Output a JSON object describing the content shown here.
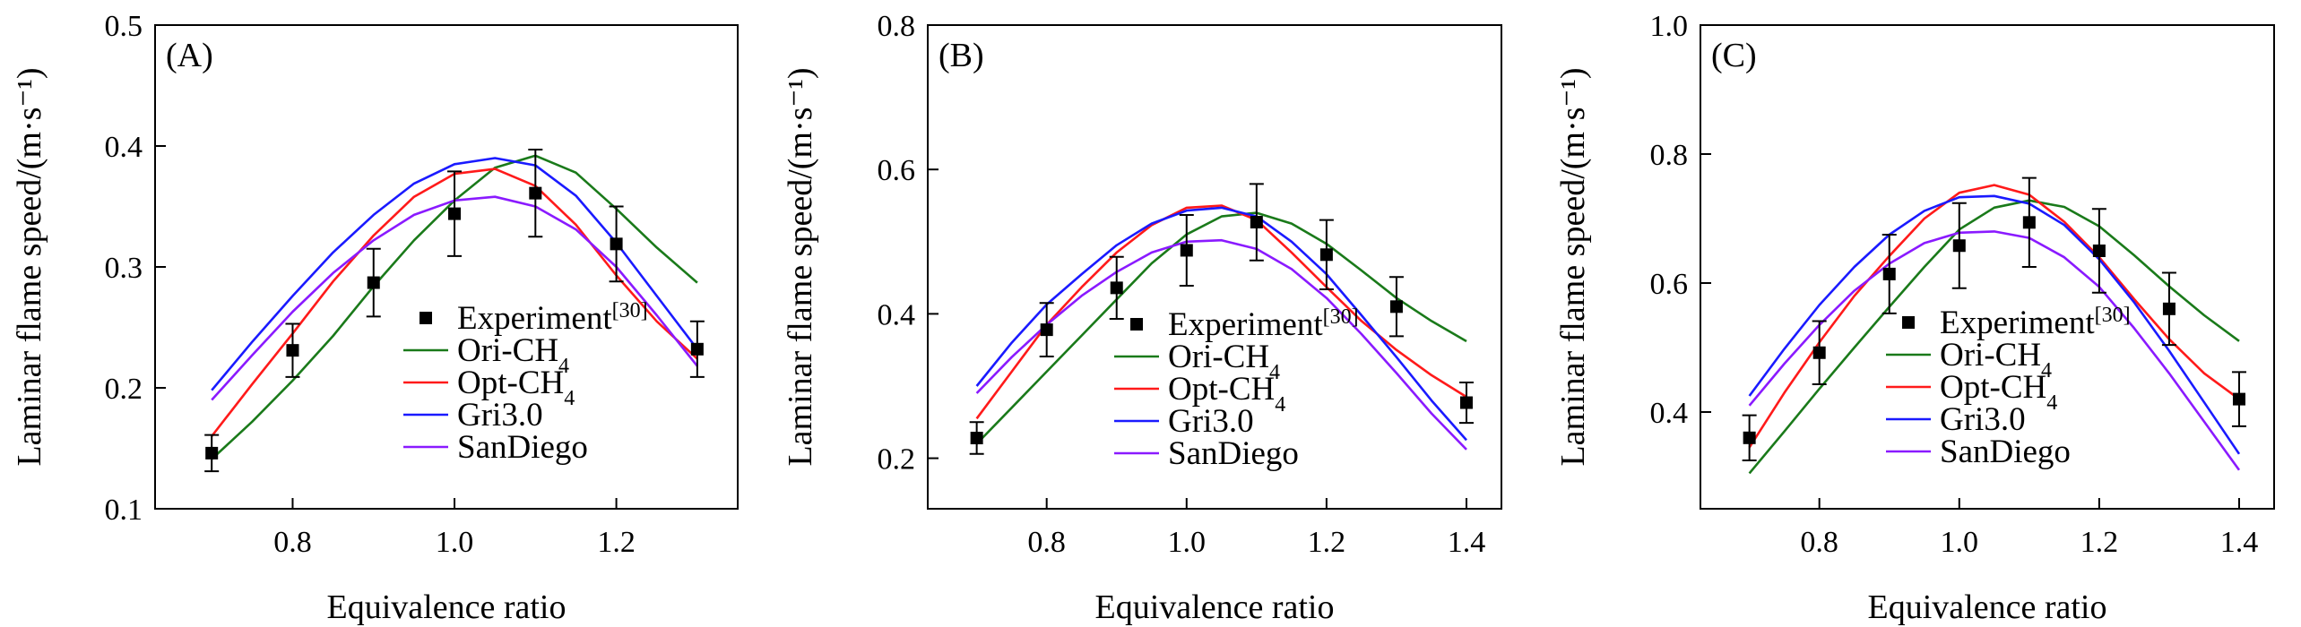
{
  "colors": {
    "experiment": "#000000",
    "Ori-CH4": "#1a7a1a",
    "Opt-CH4": "#ff1a1a",
    "Gri3.0": "#1a1aff",
    "SanDiego": "#8a1aff"
  },
  "legend": [
    {
      "key": "experiment",
      "base": "Experiment",
      "sup": "[30]",
      "sub": ""
    },
    {
      "key": "Ori-CH4",
      "base": "Ori-CH",
      "sup": "",
      "sub": "4"
    },
    {
      "key": "Opt-CH4",
      "base": "Opt-CH",
      "sup": "",
      "sub": "4"
    },
    {
      "key": "Gri3.0",
      "base": "Gri3.0",
      "sup": "",
      "sub": ""
    },
    {
      "key": "SanDiego",
      "base": "SanDiego",
      "sup": "",
      "sub": ""
    }
  ],
  "chart_data": [
    {
      "type": "line",
      "panel": "(A)",
      "xlabel": "Equivalence ratio",
      "ylabel": "Laminar flame speed/(m·s⁻¹)",
      "xlim": [
        0.63,
        1.35
      ],
      "ylim": [
        0.1,
        0.5
      ],
      "xticks": [
        0.8,
        1.0,
        1.2
      ],
      "xtick_labels": [
        "0.8",
        "1.0",
        "1.2"
      ],
      "yticks": [
        0.1,
        0.2,
        0.3,
        0.4,
        0.5
      ],
      "ytick_labels": [
        "0.1",
        "0.2",
        "0.3",
        "0.4",
        "0.5"
      ],
      "x": [
        0.7,
        0.75,
        0.8,
        0.85,
        0.9,
        0.95,
        1.0,
        1.05,
        1.1,
        1.15,
        1.2,
        1.25,
        1.3
      ],
      "series": [
        {
          "name": "Ori-CH4",
          "values": [
            0.141,
            0.172,
            0.206,
            0.243,
            0.284,
            0.322,
            0.355,
            0.382,
            0.392,
            0.378,
            0.348,
            0.316,
            0.287
          ]
        },
        {
          "name": "Opt-CH4",
          "values": [
            0.16,
            0.203,
            0.245,
            0.288,
            0.326,
            0.358,
            0.377,
            0.381,
            0.367,
            0.335,
            0.293,
            0.255,
            0.224
          ]
        },
        {
          "name": "Gri3.0",
          "values": [
            0.198,
            0.238,
            0.276,
            0.312,
            0.343,
            0.369,
            0.385,
            0.39,
            0.384,
            0.359,
            0.32,
            0.276,
            0.232
          ]
        },
        {
          "name": "SanDiego",
          "values": [
            0.19,
            0.227,
            0.263,
            0.295,
            0.322,
            0.343,
            0.355,
            0.358,
            0.35,
            0.331,
            0.3,
            0.26,
            0.218
          ]
        }
      ],
      "experiment": {
        "x": [
          0.7,
          0.8,
          0.9,
          1.0,
          1.1,
          1.2,
          1.3
        ],
        "y": [
          0.146,
          0.231,
          0.287,
          0.344,
          0.361,
          0.319,
          0.232
        ],
        "err": [
          0.015,
          0.022,
          0.028,
          0.035,
          0.036,
          0.031,
          0.023
        ]
      }
    },
    {
      "type": "line",
      "panel": "(B)",
      "xlabel": "Equivalence ratio",
      "ylabel": "Laminar flame speed/(m·s⁻¹)",
      "xlim": [
        0.63,
        1.45
      ],
      "ylim": [
        0.13,
        0.8
      ],
      "xticks": [
        0.8,
        1.0,
        1.2,
        1.4
      ],
      "xtick_labels": [
        "0.8",
        "1.0",
        "1.2",
        "1.4"
      ],
      "yticks": [
        0.2,
        0.4,
        0.6,
        0.8
      ],
      "ytick_labels": [
        "0.2",
        "0.4",
        "0.6",
        "0.8"
      ],
      "x": [
        0.7,
        0.75,
        0.8,
        0.85,
        0.9,
        0.95,
        1.0,
        1.05,
        1.1,
        1.15,
        1.2,
        1.25,
        1.3,
        1.35,
        1.4
      ],
      "series": [
        {
          "name": "Ori-CH4",
          "values": [
            0.22,
            0.27,
            0.32,
            0.37,
            0.42,
            0.47,
            0.51,
            0.535,
            0.54,
            0.525,
            0.497,
            0.46,
            0.422,
            0.39,
            0.362
          ]
        },
        {
          "name": "Opt-CH4",
          "values": [
            0.255,
            0.32,
            0.385,
            0.437,
            0.485,
            0.523,
            0.547,
            0.55,
            0.53,
            0.485,
            0.437,
            0.39,
            0.35,
            0.315,
            0.285
          ]
        },
        {
          "name": "Gri3.0",
          "values": [
            0.3,
            0.36,
            0.413,
            0.455,
            0.495,
            0.525,
            0.543,
            0.547,
            0.535,
            0.5,
            0.455,
            0.398,
            0.34,
            0.28,
            0.225
          ]
        },
        {
          "name": "SanDiego",
          "values": [
            0.29,
            0.34,
            0.385,
            0.425,
            0.458,
            0.485,
            0.5,
            0.502,
            0.49,
            0.462,
            0.422,
            0.372,
            0.318,
            0.262,
            0.212
          ]
        }
      ],
      "experiment": {
        "x": [
          0.7,
          0.8,
          0.9,
          1.0,
          1.1,
          1.2,
          1.3,
          1.4
        ],
        "y": [
          0.228,
          0.378,
          0.436,
          0.488,
          0.527,
          0.482,
          0.41,
          0.277
        ],
        "err": [
          0.022,
          0.037,
          0.043,
          0.049,
          0.053,
          0.048,
          0.041,
          0.028
        ]
      }
    },
    {
      "type": "line",
      "panel": "(C)",
      "xlabel": "Equivalence ratio",
      "ylabel": "Laminar flame speed/(m·s⁻¹)",
      "xlim": [
        0.63,
        1.45
      ],
      "ylim": [
        0.25,
        1.0
      ],
      "xticks": [
        0.8,
        1.0,
        1.2,
        1.4
      ],
      "xtick_labels": [
        "0.8",
        "1.0",
        "1.2",
        "1.4"
      ],
      "yticks": [
        0.4,
        0.6,
        0.8,
        1.0
      ],
      "ytick_labels": [
        "0.4",
        "0.6",
        "0.8",
        "1.0"
      ],
      "x": [
        0.7,
        0.75,
        0.8,
        0.85,
        0.9,
        0.95,
        1.0,
        1.05,
        1.1,
        1.15,
        1.2,
        1.25,
        1.3,
        1.35,
        1.4
      ],
      "series": [
        {
          "name": "Ori-CH4",
          "values": [
            0.305,
            0.37,
            0.436,
            0.5,
            0.563,
            0.625,
            0.683,
            0.717,
            0.728,
            0.718,
            0.688,
            0.643,
            0.595,
            0.55,
            0.51
          ]
        },
        {
          "name": "Opt-CH4",
          "values": [
            0.345,
            0.43,
            0.508,
            0.58,
            0.642,
            0.7,
            0.74,
            0.752,
            0.737,
            0.695,
            0.64,
            0.575,
            0.513,
            0.46,
            0.42
          ]
        },
        {
          "name": "Gri3.0",
          "values": [
            0.425,
            0.498,
            0.566,
            0.625,
            0.675,
            0.712,
            0.733,
            0.735,
            0.723,
            0.69,
            0.637,
            0.57,
            0.495,
            0.415,
            0.335
          ]
        },
        {
          "name": "SanDiego",
          "values": [
            0.41,
            0.475,
            0.535,
            0.588,
            0.63,
            0.662,
            0.678,
            0.68,
            0.67,
            0.64,
            0.594,
            0.53,
            0.46,
            0.385,
            0.31
          ]
        }
      ],
      "experiment": {
        "x": [
          0.7,
          0.8,
          0.9,
          1.0,
          1.1,
          1.2,
          1.3,
          1.4
        ],
        "y": [
          0.36,
          0.492,
          0.614,
          0.658,
          0.694,
          0.65,
          0.56,
          0.42
        ],
        "err": [
          0.035,
          0.049,
          0.061,
          0.066,
          0.069,
          0.065,
          0.056,
          0.042
        ]
      }
    }
  ]
}
